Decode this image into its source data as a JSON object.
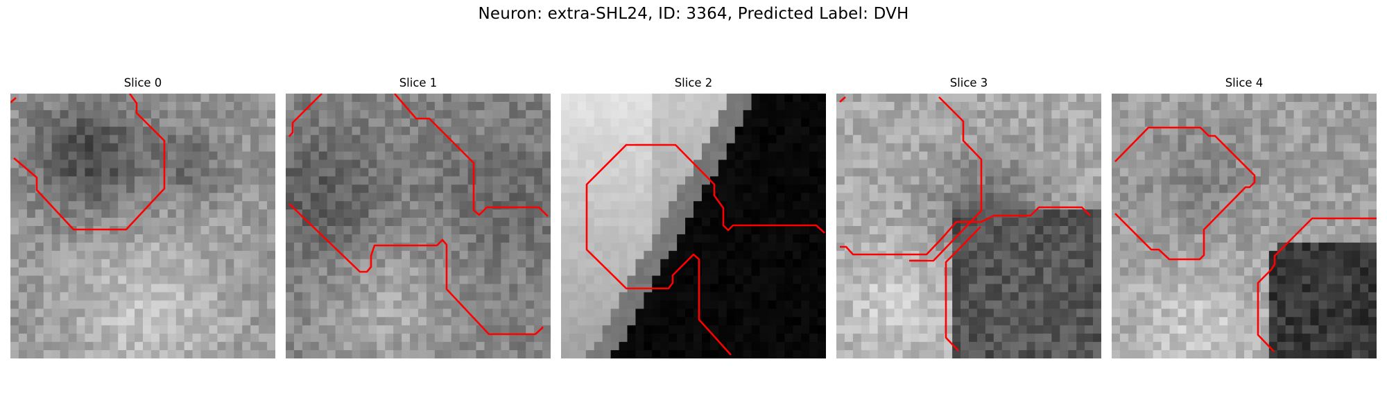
{
  "figure": {
    "title": "Neuron: extra-SHL24, ID: 3364, Predicted Label: DVH"
  },
  "panels": [
    {
      "title": "Slice 0",
      "style": "blob"
    },
    {
      "title": "Slice 1",
      "style": "noise"
    },
    {
      "title": "Slice 2",
      "style": "diagonal"
    },
    {
      "title": "Slice 3",
      "style": "split"
    },
    {
      "title": "Slice 4",
      "style": "corner"
    }
  ],
  "colors": {
    "contour": "#ff0000",
    "background": "#ffffff"
  }
}
